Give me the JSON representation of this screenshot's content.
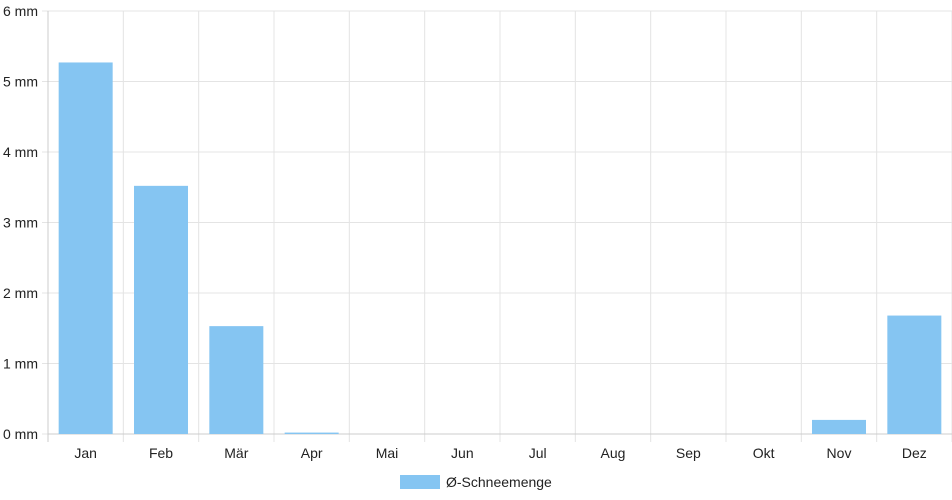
{
  "chart_data": {
    "type": "bar",
    "categories": [
      "Jan",
      "Feb",
      "Mär",
      "Apr",
      "Mai",
      "Jun",
      "Jul",
      "Aug",
      "Sep",
      "Okt",
      "Nov",
      "Dez"
    ],
    "series": [
      {
        "name": "Ø-Schneemenge",
        "values": [
          5.27,
          3.52,
          1.53,
          0.02,
          0,
          0,
          0,
          0,
          0,
          0,
          0.2,
          1.68
        ]
      }
    ],
    "ylim": [
      0,
      6
    ],
    "yticks": [
      0,
      1,
      2,
      3,
      4,
      5,
      6
    ],
    "y_unit": "mm",
    "grid": true,
    "legend_position": "bottom",
    "colors": {
      "bar_fill": "#85c5f2",
      "grid": "#e4e4e4",
      "axis": "#cccccc",
      "text": "#222222"
    }
  }
}
